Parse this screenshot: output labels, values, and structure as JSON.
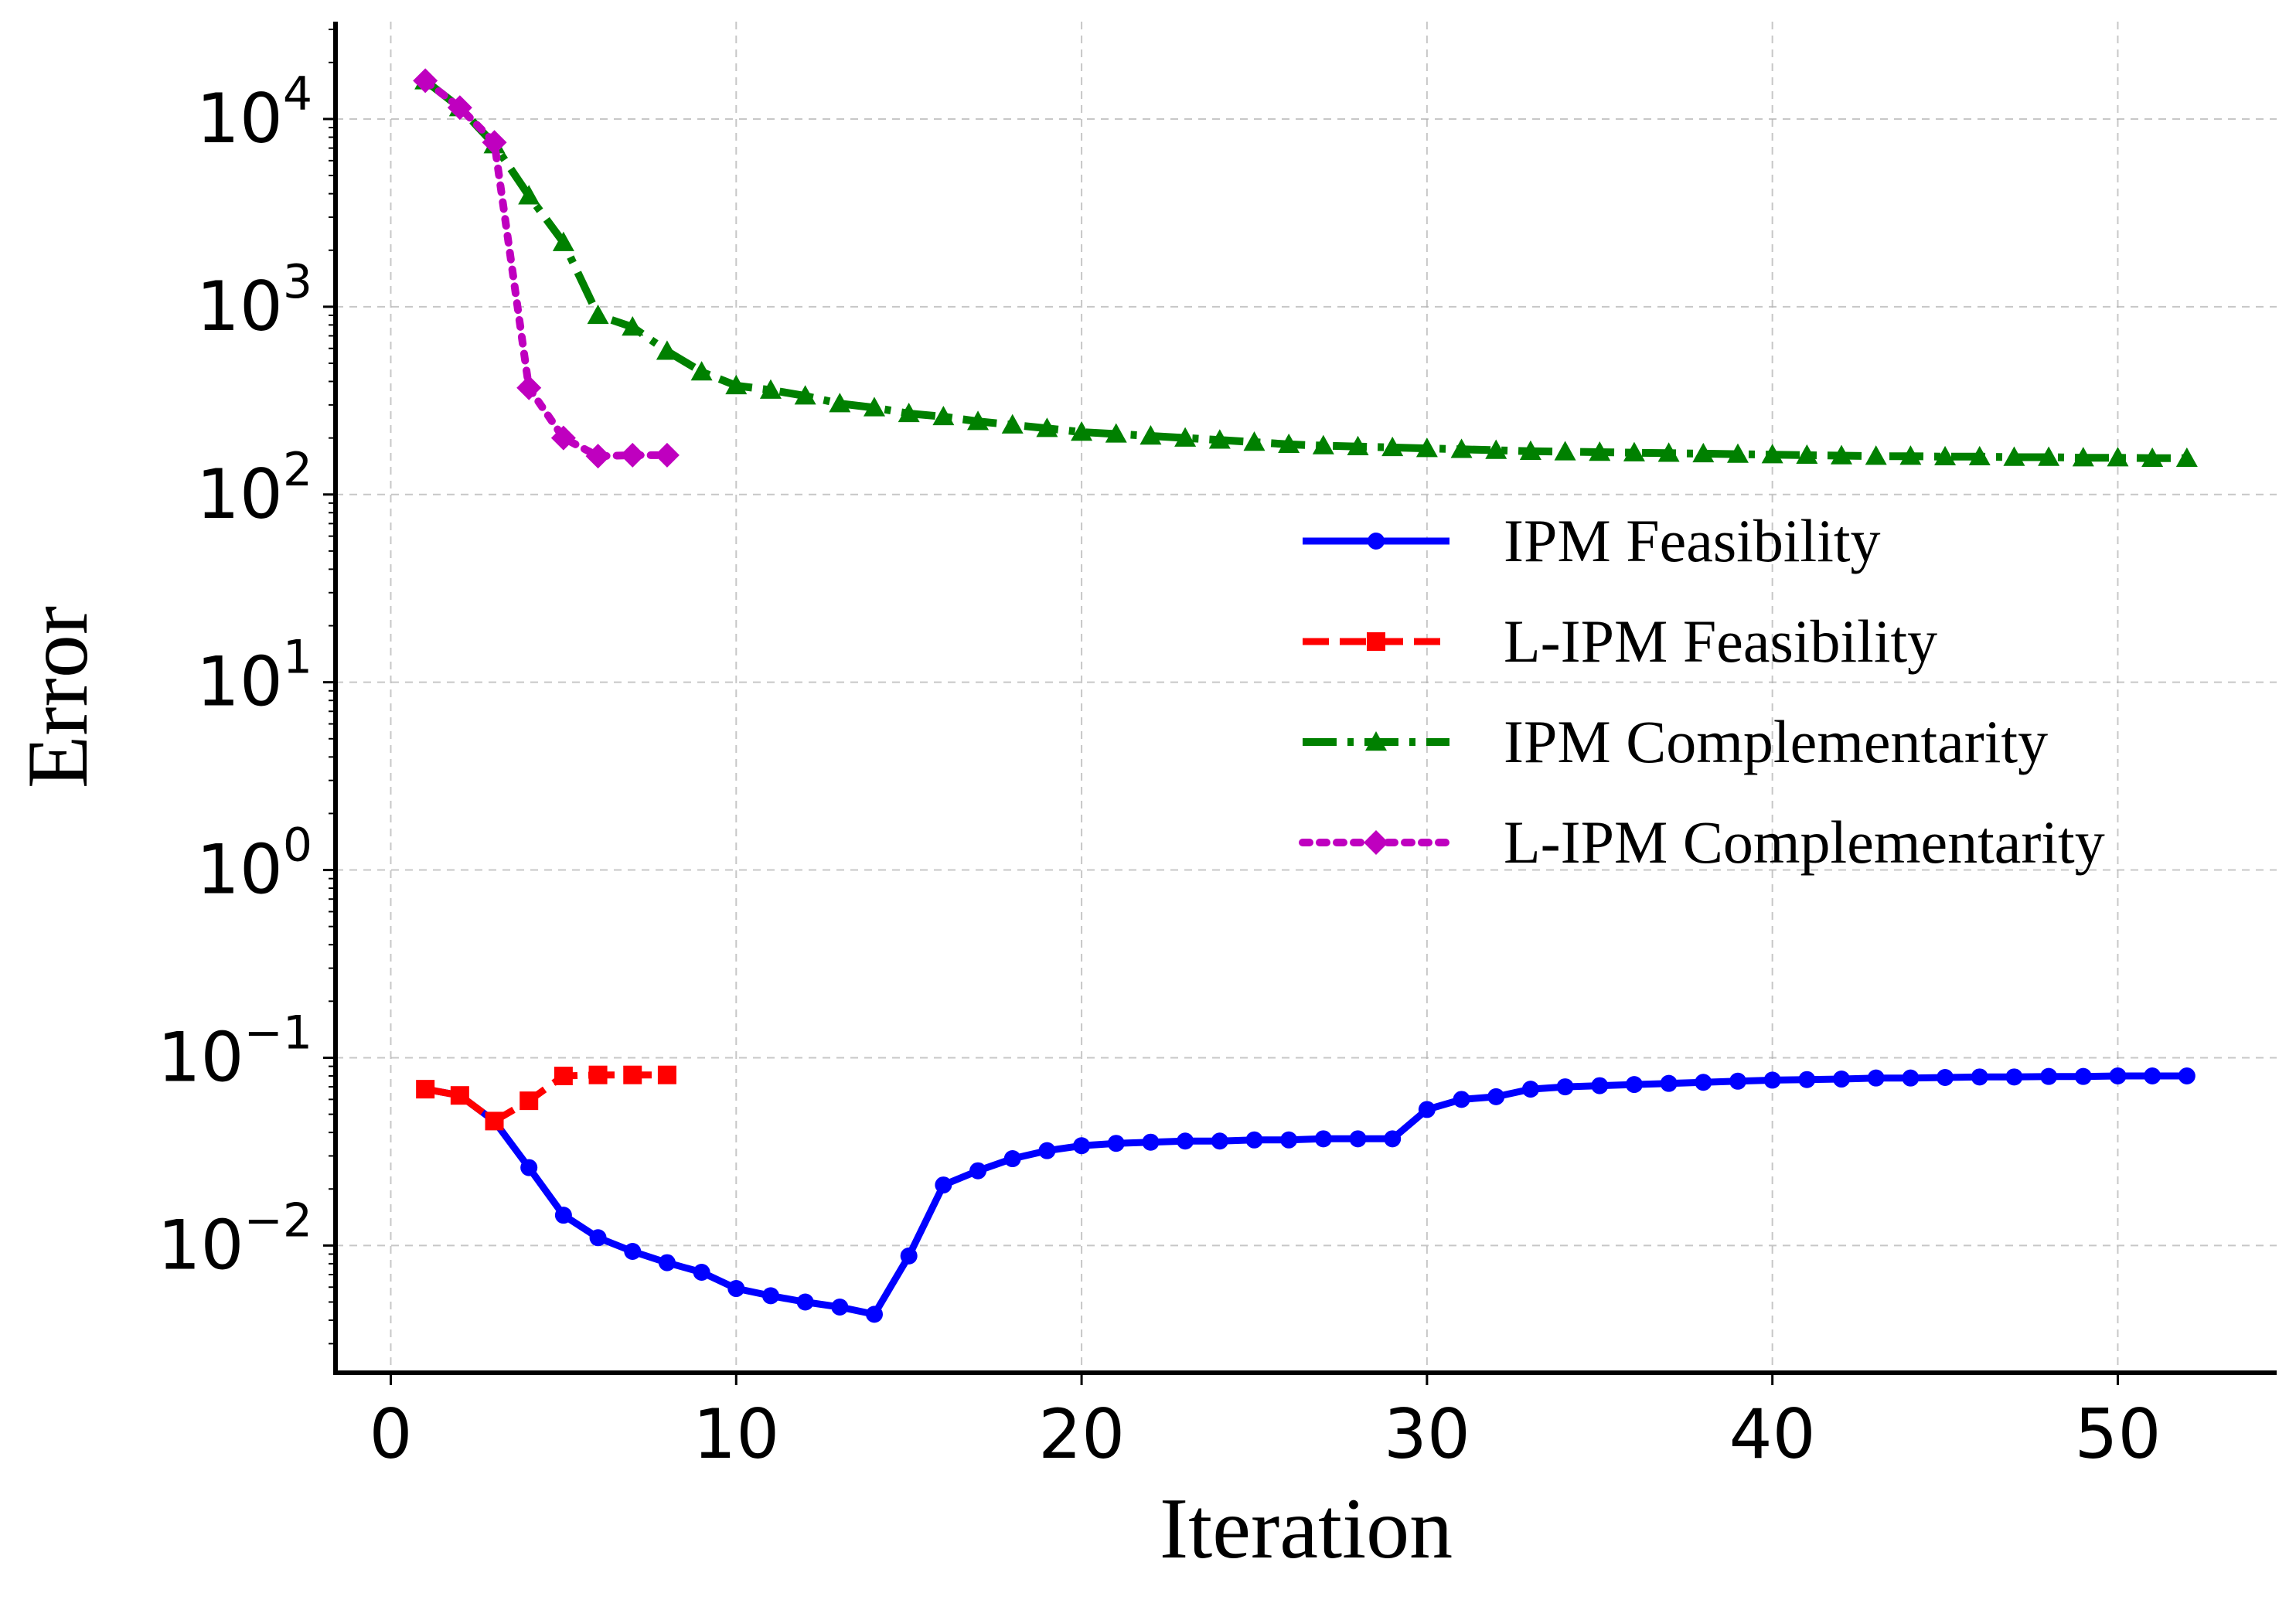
{
  "chart_data": {
    "type": "line",
    "title": "",
    "xlabel": "Iteration",
    "ylabel": "Error",
    "yscale": "log",
    "xlim": [
      -1.6,
      54.6
    ],
    "ylim": [
      0.0021,
      33000
    ],
    "xticks": [
      0,
      10,
      20,
      30,
      40,
      50
    ],
    "yticks": [
      {
        "base": "10",
        "exp": "−2",
        "value": 0.01
      },
      {
        "base": "10",
        "exp": "−1",
        "value": 0.1
      },
      {
        "base": "10",
        "exp": "0",
        "value": 1
      },
      {
        "base": "10",
        "exp": "1",
        "value": 10
      },
      {
        "base": "10",
        "exp": "2",
        "value": 100
      },
      {
        "base": "10",
        "exp": "3",
        "value": 1000
      },
      {
        "base": "10",
        "exp": "4",
        "value": 10000
      }
    ],
    "grid": true,
    "legend_position": "center-right",
    "series": [
      {
        "name": "IPM Feasibility",
        "color": "#0000ff",
        "line": "solid",
        "marker": "circle",
        "x": [
          1,
          2,
          3,
          4,
          5,
          6,
          7,
          8,
          9,
          10,
          11,
          12,
          13,
          14,
          15,
          16,
          17,
          18,
          19,
          20,
          21,
          22,
          23,
          24,
          25,
          26,
          27,
          28,
          29,
          30,
          31,
          32,
          33,
          34,
          35,
          36,
          37,
          38,
          39,
          40,
          41,
          42,
          43,
          44,
          45,
          46,
          47,
          48,
          49,
          50,
          51,
          52
        ],
        "y": [
          0.068,
          0.063,
          0.046,
          0.026,
          0.0145,
          0.011,
          0.0093,
          0.0081,
          0.0072,
          0.0059,
          0.0054,
          0.005,
          0.0047,
          0.0043,
          0.0088,
          0.021,
          0.025,
          0.029,
          0.032,
          0.034,
          0.035,
          0.0355,
          0.036,
          0.036,
          0.0365,
          0.0365,
          0.037,
          0.037,
          0.037,
          0.053,
          0.06,
          0.062,
          0.068,
          0.07,
          0.071,
          0.072,
          0.073,
          0.074,
          0.075,
          0.076,
          0.0765,
          0.077,
          0.078,
          0.078,
          0.0785,
          0.079,
          0.079,
          0.0795,
          0.0795,
          0.08,
          0.08,
          0.08
        ]
      },
      {
        "name": "L-IPM Feasibility",
        "color": "#ff0000",
        "line": "dashed",
        "marker": "square",
        "x": [
          1,
          2,
          3,
          4,
          5,
          6,
          7,
          8
        ],
        "y": [
          0.068,
          0.063,
          0.046,
          0.059,
          0.08,
          0.081,
          0.081,
          0.081
        ]
      },
      {
        "name": "IPM Complementarity",
        "color": "#008000",
        "line": "dashdot",
        "marker": "triangle",
        "x": [
          1,
          2,
          3,
          4,
          5,
          6,
          7,
          8,
          9,
          10,
          11,
          12,
          13,
          14,
          15,
          16,
          17,
          18,
          19,
          20,
          21,
          22,
          23,
          24,
          25,
          26,
          27,
          28,
          29,
          30,
          31,
          32,
          33,
          34,
          35,
          36,
          37,
          38,
          39,
          40,
          41,
          42,
          43,
          44,
          45,
          46,
          47,
          48,
          49,
          50,
          51,
          52
        ],
        "y": [
          16000,
          11500,
          7300,
          3900,
          2200,
          900,
          780,
          580,
          450,
          380,
          360,
          335,
          305,
          290,
          270,
          260,
          245,
          235,
          225,
          215,
          210,
          205,
          200,
          195,
          190,
          185,
          182,
          180,
          178,
          176,
          174,
          172,
          170,
          169,
          168,
          167,
          166,
          165,
          164,
          163,
          162,
          161,
          160,
          160,
          159,
          159,
          158,
          158,
          157,
          157,
          156,
          156
        ]
      },
      {
        "name": "L-IPM Complementarity",
        "color": "#bf00bf",
        "line": "dotted",
        "marker": "diamond",
        "x": [
          1,
          2,
          3,
          4,
          5,
          6,
          7,
          8
        ],
        "y": [
          16000,
          11500,
          7500,
          370,
          200,
          160,
          162,
          162
        ]
      }
    ]
  }
}
